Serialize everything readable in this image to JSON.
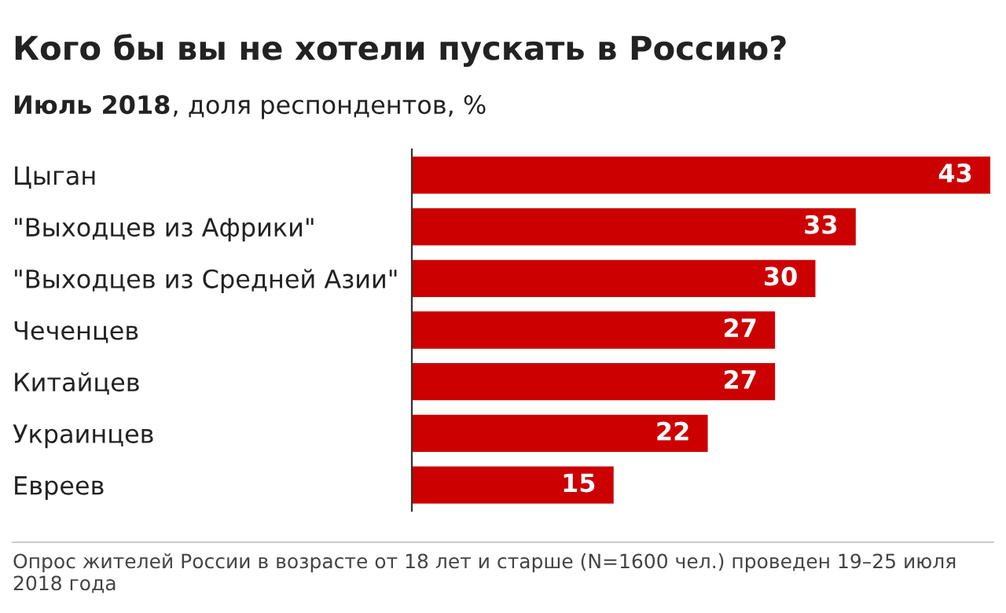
{
  "chart_data": {
    "type": "bar",
    "orientation": "horizontal",
    "title": "Кого бы вы не хотели пускать в Россию?",
    "subtitle": "Июль 2018, доля респондентов, %",
    "categories": [
      "Цыган",
      "\"Выходцев из Африки\"",
      "\"Выходцев из Средней Азии\"",
      "Чеченцев",
      "Китайцев",
      "Украинцев",
      "Евреев"
    ],
    "values": [
      43,
      33,
      30,
      27,
      27,
      22,
      15
    ],
    "color": "#cc0000",
    "data_labels": true,
    "grid": false,
    "annotations": [
      "Опрос жителей России в возрасте от 18 лет и старше (N=1600 чел.) проведен 19–25 июля 2018 года"
    ]
  }
}
